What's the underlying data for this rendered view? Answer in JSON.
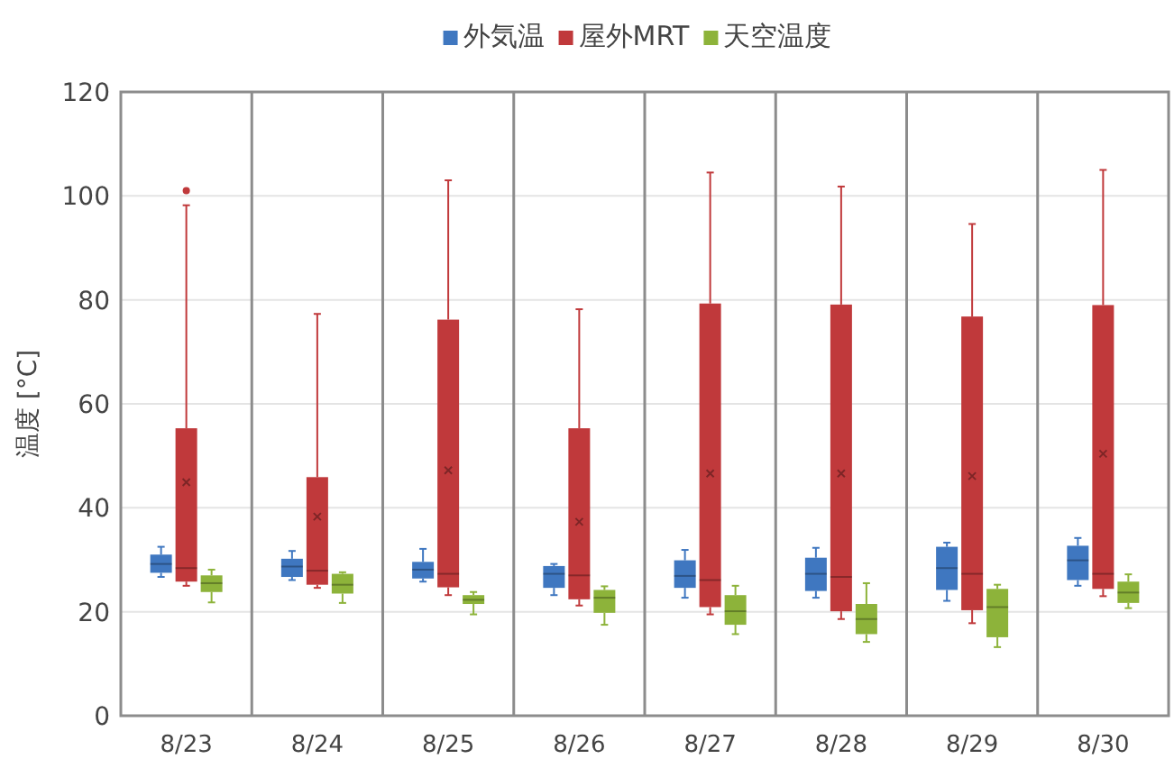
{
  "chart_data": {
    "type": "box",
    "ylabel": "温度 [°C]",
    "categories": [
      "8/23",
      "8/24",
      "8/25",
      "8/26",
      "8/27",
      "8/28",
      "8/29",
      "8/30"
    ],
    "ylim": [
      0,
      120
    ],
    "yticks": [
      0,
      20,
      40,
      60,
      80,
      100,
      120
    ],
    "grid": true,
    "legend": "top",
    "series": [
      {
        "name": "外気温",
        "color": "#3f77c0",
        "boxes": [
          {
            "low": 26.7,
            "q1": 27.5,
            "median": 29.2,
            "q3": 31,
            "high": 32.5
          },
          {
            "low": 26.1,
            "q1": 26.7,
            "median": 28.7,
            "q3": 30.2,
            "high": 31.7
          },
          {
            "low": 25.8,
            "q1": 26.4,
            "median": 28.1,
            "q3": 29.6,
            "high": 32.1
          },
          {
            "low": 23.2,
            "q1": 24.6,
            "median": 27.3,
            "q3": 28.8,
            "high": 29.2
          },
          {
            "low": 22.7,
            "q1": 24.6,
            "median": 26.9,
            "q3": 29.9,
            "high": 31.9
          },
          {
            "low": 22.7,
            "q1": 24,
            "median": 27.3,
            "q3": 30.4,
            "high": 32.3
          },
          {
            "low": 22.1,
            "q1": 24.2,
            "median": 28.4,
            "q3": 32.5,
            "high": 33.3
          },
          {
            "low": 25,
            "q1": 26.1,
            "median": 29.9,
            "q3": 32.7,
            "high": 34.2
          }
        ]
      },
      {
        "name": "屋外MRT",
        "color": "#c0393b",
        "boxes": [
          {
            "low": 25,
            "q1": 25.8,
            "median": 28.4,
            "q3": 55.3,
            "high": 98.2,
            "mean": 44.9,
            "outliers": [
              101
            ]
          },
          {
            "low": 24.6,
            "q1": 25.2,
            "median": 27.9,
            "q3": 45.9,
            "high": 77.3,
            "mean": 38.3
          },
          {
            "low": 23.2,
            "q1": 24.7,
            "median": 27.3,
            "q3": 76.2,
            "high": 103,
            "mean": 47.2
          },
          {
            "low": 21.2,
            "q1": 22.4,
            "median": 27,
            "q3": 55.3,
            "high": 78.2,
            "mean": 37.3
          },
          {
            "low": 19.5,
            "q1": 20.9,
            "median": 26.1,
            "q3": 79.3,
            "high": 104.5,
            "mean": 46.6
          },
          {
            "low": 18.6,
            "q1": 20.1,
            "median": 26.7,
            "q3": 79.1,
            "high": 101.8,
            "mean": 46.6
          },
          {
            "low": 17.8,
            "q1": 20.3,
            "median": 27.3,
            "q3": 76.8,
            "high": 94.6,
            "mean": 46.1
          },
          {
            "low": 23,
            "q1": 24.4,
            "median": 27.3,
            "q3": 79,
            "high": 105,
            "mean": 50.4
          }
        ]
      },
      {
        "name": "天空温度",
        "color": "#8db33a",
        "boxes": [
          {
            "low": 21.8,
            "q1": 23.8,
            "median": 25.5,
            "q3": 27,
            "high": 28.1
          },
          {
            "low": 21.7,
            "q1": 23.5,
            "median": 25.2,
            "q3": 27.3,
            "high": 27.6
          },
          {
            "low": 19.5,
            "q1": 21.5,
            "median": 22.3,
            "q3": 23.2,
            "high": 23.8
          },
          {
            "low": 17.5,
            "q1": 19.8,
            "median": 22.7,
            "q3": 24.2,
            "high": 24.9
          },
          {
            "low": 15.7,
            "q1": 17.5,
            "median": 20.1,
            "q3": 23.2,
            "high": 25
          },
          {
            "low": 14.2,
            "q1": 15.7,
            "median": 18.6,
            "q3": 21.5,
            "high": 25.5
          },
          {
            "low": 13.2,
            "q1": 15.1,
            "median": 20.9,
            "q3": 24.4,
            "high": 25.2
          },
          {
            "low": 20.7,
            "q1": 21.7,
            "median": 23.7,
            "q3": 25.8,
            "high": 27.2
          }
        ]
      }
    ]
  }
}
